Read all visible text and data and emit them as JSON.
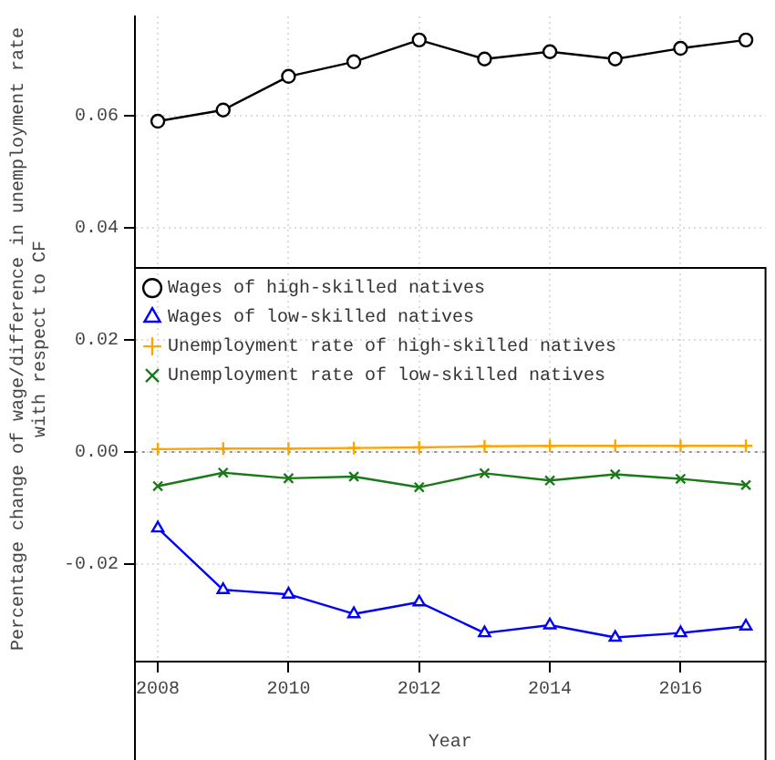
{
  "chart_data": {
    "type": "line",
    "xlabel": "Year",
    "ylabel": "Percentage change of wage/difference in unemployment rate\nwith respect to CF",
    "x": [
      2008,
      2009,
      2010,
      2011,
      2012,
      2013,
      2014,
      2015,
      2016,
      2017
    ],
    "series": [
      {
        "name": "Wages of high-skilled natives",
        "color": "#000000",
        "marker": "circle",
        "values": [
          0.059,
          0.061,
          0.067,
          0.0696,
          0.0735,
          0.0701,
          0.0714,
          0.0701,
          0.072,
          0.0735
        ]
      },
      {
        "name": "Wages of low-skilled natives",
        "color": "#0000ff",
        "marker": "triangle",
        "values": [
          -0.0136,
          -0.0246,
          -0.0254,
          -0.0289,
          -0.0268,
          -0.0323,
          -0.0309,
          -0.0331,
          -0.0323,
          -0.0311
        ]
      },
      {
        "name": "Unemployment rate of high-skilled natives",
        "color": "#ffa500",
        "marker": "cross",
        "values": [
          0.0005,
          0.0006,
          0.0006,
          0.0007,
          0.0008,
          0.001,
          0.0011,
          0.0011,
          0.0011,
          0.0011
        ]
      },
      {
        "name": "Unemployment rate of low-skilled natives",
        "color": "#1a7a1a",
        "marker": "cross",
        "values": [
          -0.0061,
          -0.0037,
          -0.0047,
          -0.0044,
          -0.0063,
          -0.0038,
          -0.0051,
          -0.004,
          -0.0048,
          -0.0059
        ]
      }
    ],
    "xlim": [
      2007.65,
      2017.3
    ],
    "xticks": [
      2008,
      2010,
      2012,
      2014,
      2016
    ],
    "ylim": [
      -0.0374,
      0.0777
    ],
    "yticks": [
      {
        "value": -0.02,
        "label": "-0.02"
      },
      {
        "value": 0,
        "label": "0.00"
      },
      {
        "value": 0.02,
        "label": "0.02"
      },
      {
        "value": 0.04,
        "label": "0.04"
      },
      {
        "value": 0.06,
        "label": "0.06"
      }
    ],
    "ref_lines": [
      {
        "axis": "y",
        "value": 0,
        "color": "#999999",
        "line_style": "dotted"
      }
    ],
    "grid": true,
    "legend": "center"
  }
}
